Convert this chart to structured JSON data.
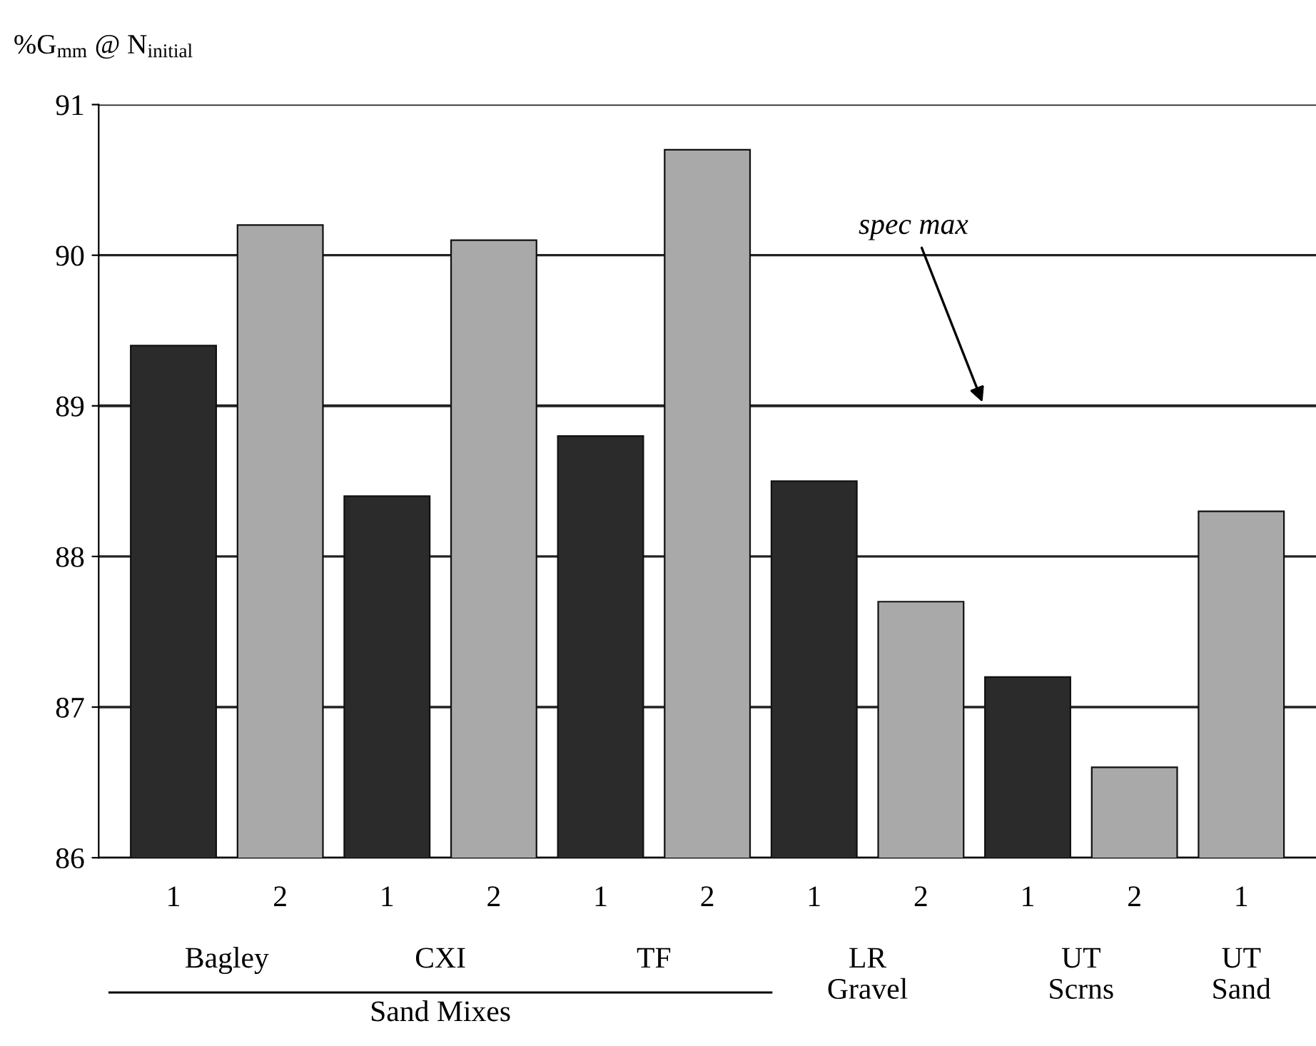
{
  "chart_data": {
    "type": "bar",
    "ylabel": "%G$_{mm}$ @ N$_{initial}$",
    "categories": [
      "1",
      "2",
      "1",
      "2",
      "1",
      "2",
      "1",
      "2",
      "1",
      "2",
      "1"
    ],
    "values": [
      89.4,
      90.2,
      88.4,
      90.1,
      88.8,
      90.7,
      88.5,
      87.7,
      87.2,
      86.6,
      88.3
    ],
    "colors": [
      "#2b2b2b",
      "#a9a9a9",
      "#2b2b2b",
      "#a9a9a9",
      "#2b2b2b",
      "#a9a9a9",
      "#2b2b2b",
      "#a9a9a9",
      "#2b2b2b",
      "#a9a9a9",
      "#a9a9a9"
    ],
    "ylim": [
      86,
      91
    ],
    "yticks": [
      86,
      87,
      88,
      89,
      90,
      91
    ],
    "grid": "y",
    "ref_lines": [
      {
        "axis": "y",
        "value": 89,
        "label": "spec max"
      }
    ],
    "annotations": [
      "Bagley",
      "CXI",
      "TF",
      "LR\nGravel",
      "UT\nScrns",
      "UT\nSand",
      "Sand Mixes"
    ]
  }
}
